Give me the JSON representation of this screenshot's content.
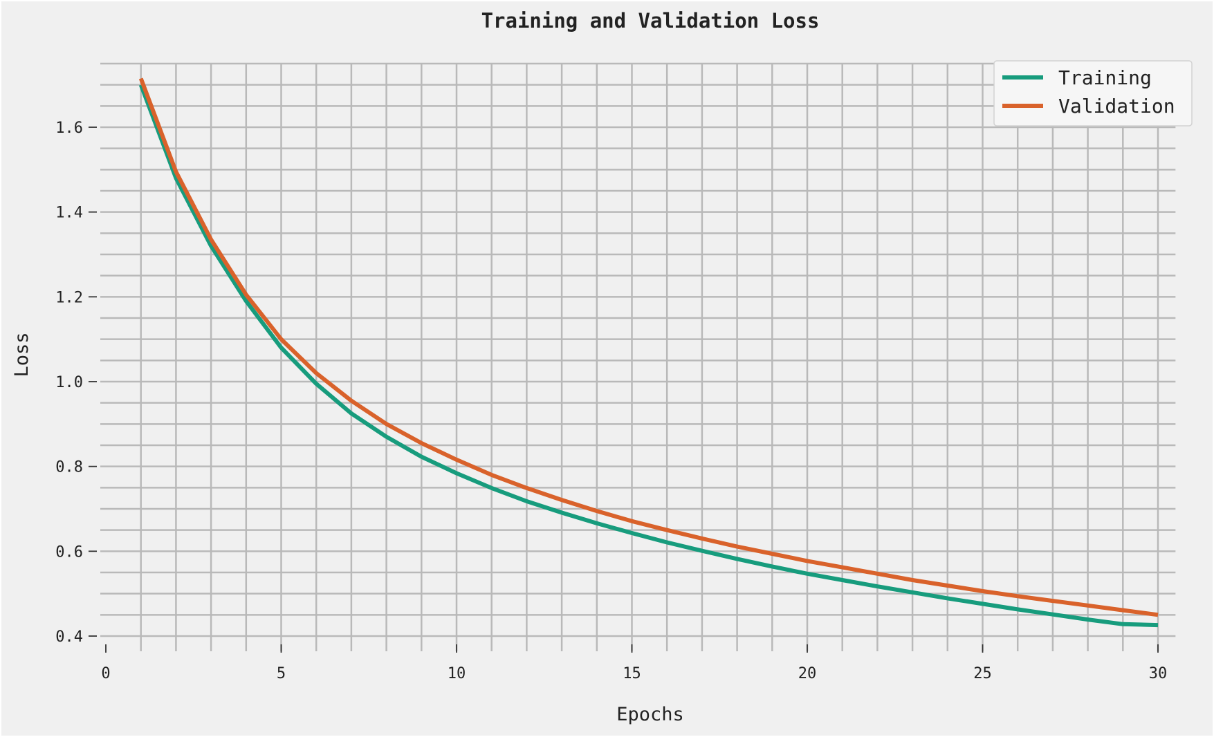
{
  "chart_data": {
    "type": "line",
    "title": "Training and Validation Loss",
    "xlabel": "Epochs",
    "ylabel": "Loss",
    "xlim": [
      0,
      30.5
    ],
    "ylim": [
      0.4,
      1.75
    ],
    "xticks": [
      0,
      5,
      10,
      15,
      20,
      25,
      30
    ],
    "yticks": [
      0.4,
      0.6,
      0.8,
      1.0,
      1.2,
      1.4,
      1.6
    ],
    "grid": true,
    "legend_position": "top-right",
    "x": [
      1,
      2,
      3,
      4,
      5,
      6,
      7,
      8,
      9,
      10,
      11,
      12,
      13,
      14,
      15,
      16,
      17,
      18,
      19,
      20,
      21,
      22,
      23,
      24,
      25,
      26,
      27,
      28,
      29,
      30
    ],
    "series": [
      {
        "name": "Training",
        "color": "#179c7d",
        "values": [
          1.7,
          1.48,
          1.32,
          1.19,
          1.08,
          0.995,
          0.925,
          0.87,
          0.823,
          0.784,
          0.749,
          0.718,
          0.691,
          0.666,
          0.643,
          0.621,
          0.601,
          0.582,
          0.564,
          0.547,
          0.532,
          0.517,
          0.503,
          0.489,
          0.476,
          0.463,
          0.451,
          0.439,
          0.428,
          0.426
        ]
      },
      {
        "name": "Validation",
        "color": "#d9622b",
        "values": [
          1.715,
          1.495,
          1.335,
          1.205,
          1.1,
          1.02,
          0.955,
          0.9,
          0.855,
          0.816,
          0.78,
          0.749,
          0.721,
          0.695,
          0.671,
          0.65,
          0.63,
          0.611,
          0.594,
          0.577,
          0.562,
          0.547,
          0.532,
          0.519,
          0.506,
          0.494,
          0.483,
          0.472,
          0.461,
          0.45
        ]
      }
    ]
  }
}
